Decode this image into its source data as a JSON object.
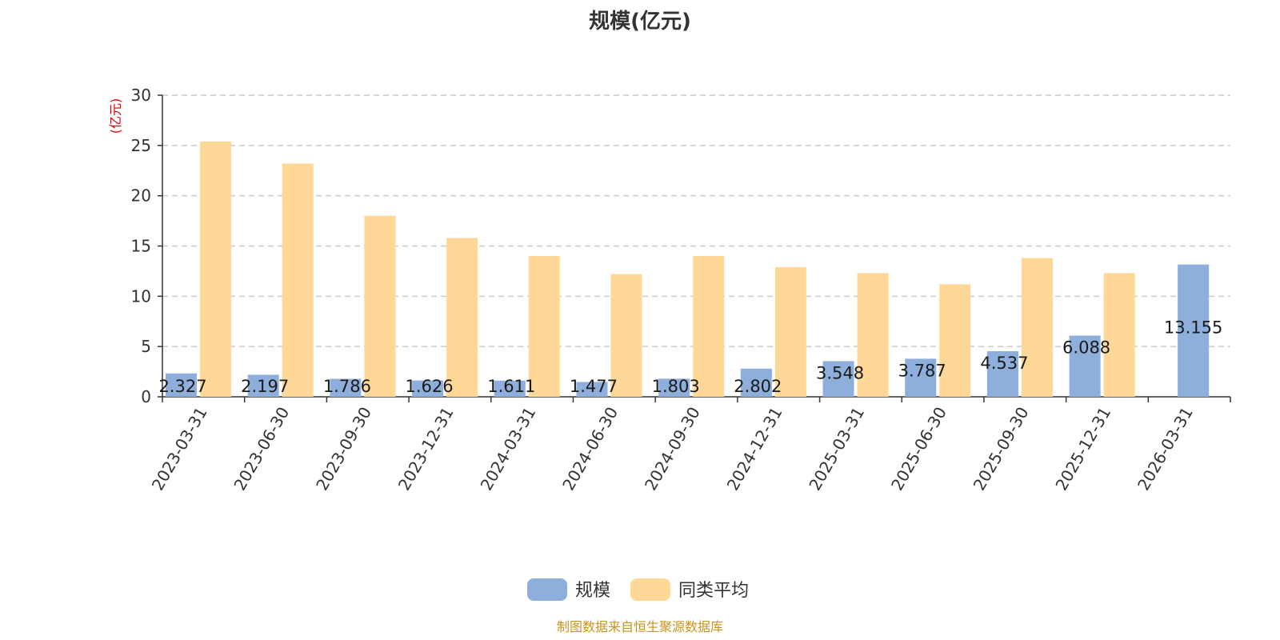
{
  "chart_data": {
    "type": "bar",
    "title": "规模(亿元)",
    "ylabel": "(亿元)",
    "xlabel": "",
    "ylim": [
      0,
      30
    ],
    "yticks": [
      0,
      5,
      10,
      15,
      20,
      25,
      30
    ],
    "grid": true,
    "legend_position": "bottom",
    "categories": [
      "2023-03-31",
      "2023-06-30",
      "2023-09-30",
      "2023-12-31",
      "2024-03-31",
      "2024-06-30",
      "2024-09-30",
      "2024-12-31",
      "2025-03-31",
      "2025-06-30",
      "2025-09-30",
      "2025-12-31",
      "2026-03-31"
    ],
    "series": [
      {
        "name": "规模",
        "color": "#8eaedb",
        "values": [
          2.327,
          2.197,
          1.786,
          1.626,
          1.611,
          1.477,
          1.803,
          2.802,
          3.548,
          3.787,
          4.537,
          6.088,
          13.155
        ],
        "labels": [
          "2.327",
          "2.197",
          "1.786",
          "1.626",
          "1.611",
          "1.477",
          "1.803",
          "2.802",
          "3.548",
          "3.787",
          "4.537",
          "6.088",
          "13.155"
        ]
      },
      {
        "name": "同类平均",
        "color": "#ffd898",
        "values": [
          25.4,
          23.2,
          18.0,
          15.8,
          14.0,
          12.2,
          14.0,
          12.9,
          12.3,
          11.2,
          13.8,
          12.3,
          null
        ]
      }
    ]
  },
  "source_text": "制图数据来自恒生聚源数据库"
}
